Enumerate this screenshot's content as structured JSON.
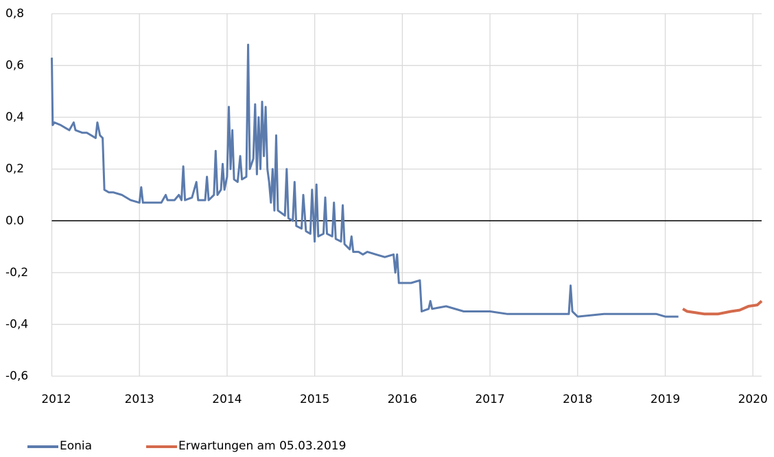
{
  "chart_data": {
    "type": "line",
    "xlim": [
      2012,
      2020.1
    ],
    "xticks": [
      2012,
      2013,
      2014,
      2015,
      2016,
      2017,
      2018,
      2019,
      2020
    ],
    "ylim": [
      -0.6,
      0.8
    ],
    "yticks": [
      {
        "value": -0.6,
        "label": "-0,6"
      },
      {
        "value": -0.4,
        "label": "-0,4"
      },
      {
        "value": -0.2,
        "label": "-0,2"
      },
      {
        "value": 0,
        "label": "0.0"
      },
      {
        "value": 0.2,
        "label": "0,2"
      },
      {
        "value": 0.4,
        "label": "0,4"
      },
      {
        "value": 0.6,
        "label": "0,6"
      },
      {
        "value": 0.8,
        "label": "0,8"
      }
    ],
    "grid": true,
    "zero_line": true,
    "legend": "bottom",
    "series": [
      {
        "name": "Eonia",
        "color": "#5b7bad",
        "x": [
          2012.0,
          2012.01,
          2012.03,
          2012.1,
          2012.15,
          2012.2,
          2012.25,
          2012.27,
          2012.35,
          2012.4,
          2012.45,
          2012.5,
          2012.52,
          2012.55,
          2012.58,
          2012.6,
          2012.65,
          2012.7,
          2012.8,
          2012.9,
          2013.0,
          2013.02,
          2013.04,
          2013.1,
          2013.2,
          2013.25,
          2013.3,
          2013.32,
          2013.4,
          2013.45,
          2013.48,
          2013.5,
          2013.52,
          2013.6,
          2013.65,
          2013.67,
          2013.75,
          2013.77,
          2013.79,
          2013.85,
          2013.87,
          2013.89,
          2013.93,
          2013.95,
          2013.97,
          2014.0,
          2014.02,
          2014.04,
          2014.06,
          2014.08,
          2014.12,
          2014.15,
          2014.17,
          2014.22,
          2014.24,
          2014.26,
          2014.3,
          2014.32,
          2014.34,
          2014.36,
          2014.38,
          2014.4,
          2014.42,
          2014.44,
          2014.46,
          2014.48,
          2014.5,
          2014.52,
          2014.54,
          2014.56,
          2014.58,
          2014.62,
          2014.66,
          2014.68,
          2014.7,
          2014.75,
          2014.77,
          2014.79,
          2014.85,
          2014.87,
          2014.9,
          2014.95,
          2014.97,
          2015.0,
          2015.02,
          2015.04,
          2015.1,
          2015.12,
          2015.14,
          2015.2,
          2015.22,
          2015.24,
          2015.3,
          2015.32,
          2015.34,
          2015.4,
          2015.42,
          2015.44,
          2015.5,
          2015.55,
          2015.6,
          2015.7,
          2015.8,
          2015.9,
          2015.92,
          2015.94,
          2015.96,
          2016.0,
          2016.1,
          2016.2,
          2016.22,
          2016.3,
          2016.32,
          2016.34,
          2016.5,
          2016.7,
          2016.9,
          2017.0,
          2017.2,
          2017.5,
          2017.7,
          2017.9,
          2017.92,
          2017.94,
          2018.0,
          2018.3,
          2018.6,
          2018.9,
          2019.0,
          2019.15
        ],
        "values": [
          0.63,
          0.37,
          0.38,
          0.37,
          0.36,
          0.35,
          0.38,
          0.35,
          0.34,
          0.34,
          0.33,
          0.32,
          0.38,
          0.33,
          0.32,
          0.12,
          0.11,
          0.11,
          0.1,
          0.08,
          0.07,
          0.13,
          0.07,
          0.07,
          0.07,
          0.07,
          0.1,
          0.08,
          0.08,
          0.1,
          0.08,
          0.21,
          0.08,
          0.09,
          0.15,
          0.08,
          0.08,
          0.17,
          0.08,
          0.1,
          0.27,
          0.1,
          0.12,
          0.22,
          0.12,
          0.17,
          0.44,
          0.2,
          0.35,
          0.16,
          0.15,
          0.25,
          0.16,
          0.17,
          0.68,
          0.2,
          0.24,
          0.45,
          0.18,
          0.4,
          0.2,
          0.46,
          0.25,
          0.44,
          0.2,
          0.15,
          0.07,
          0.2,
          0.04,
          0.33,
          0.04,
          0.03,
          0.02,
          0.2,
          0.01,
          0.0,
          0.15,
          -0.02,
          -0.03,
          0.1,
          -0.04,
          -0.05,
          0.12,
          -0.08,
          0.14,
          -0.06,
          -0.05,
          0.09,
          -0.05,
          -0.06,
          0.07,
          -0.07,
          -0.08,
          0.06,
          -0.09,
          -0.11,
          -0.06,
          -0.12,
          -0.12,
          -0.13,
          -0.12,
          -0.13,
          -0.14,
          -0.13,
          -0.2,
          -0.13,
          -0.24,
          -0.24,
          -0.24,
          -0.23,
          -0.35,
          -0.34,
          -0.31,
          -0.34,
          -0.33,
          -0.35,
          -0.35,
          -0.35,
          -0.36,
          -0.36,
          -0.36,
          -0.36,
          -0.25,
          -0.35,
          -0.37,
          -0.36,
          -0.36,
          -0.36,
          -0.37,
          -0.37
        ]
      },
      {
        "name": "Erwartungen am 05.03.2019",
        "color": "#d46a4c",
        "x": [
          2019.2,
          2019.25,
          2019.35,
          2019.45,
          2019.6,
          2019.75,
          2019.85,
          2019.95,
          2020.05,
          2020.1
        ],
        "values": [
          -0.34,
          -0.35,
          -0.355,
          -0.36,
          -0.36,
          -0.35,
          -0.345,
          -0.33,
          -0.325,
          -0.31
        ]
      }
    ]
  }
}
